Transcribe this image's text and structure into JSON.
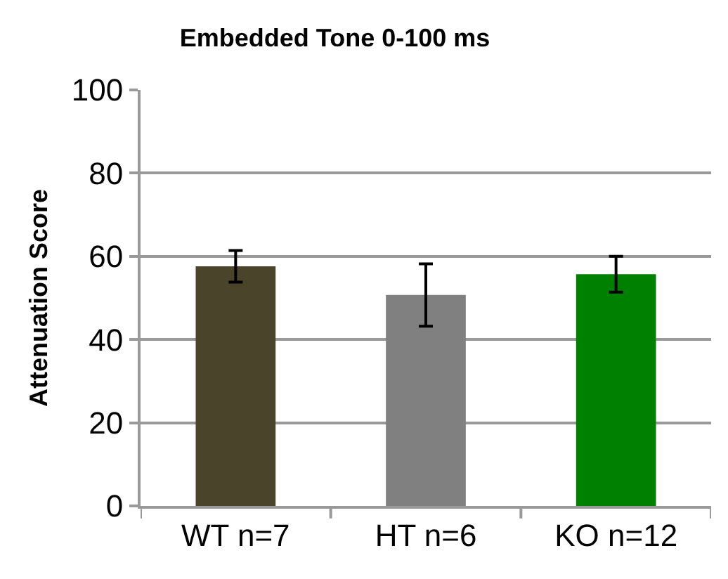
{
  "chart_data": {
    "type": "bar",
    "title": "Embedded Tone 0-100 ms",
    "ylabel": "Attenuation Score",
    "categories": [
      "WT n=7",
      "HT n=6",
      "KO n=12"
    ],
    "values": [
      57.6,
      50.7,
      55.7
    ],
    "colors": [
      "#4a442a",
      "#808080",
      "#008000"
    ],
    "errors": [
      3.8,
      7.5,
      4.3
    ],
    "ylim": [
      0,
      100
    ],
    "yticks": [
      0,
      20,
      40,
      60,
      80,
      100
    ],
    "grid": "y",
    "legend": false
  }
}
